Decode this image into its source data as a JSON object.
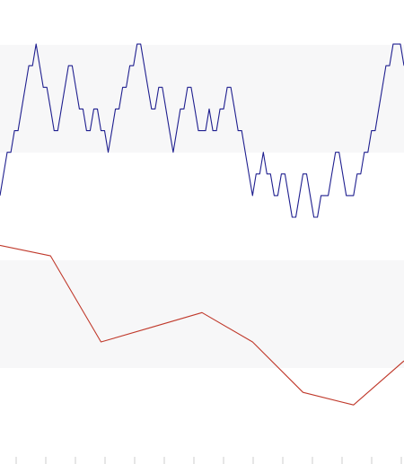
{
  "chart_data": [
    {
      "type": "line",
      "title": "",
      "xlabel": "",
      "ylabel": "",
      "ylim": [
        0,
        9
      ],
      "grid_bands": true,
      "legend": "none",
      "series": [
        {
          "color": "#1f1f8f",
          "values": [
            1,
            2,
            3,
            3,
            4,
            4,
            5,
            6,
            7,
            7,
            8,
            7,
            6,
            6,
            5,
            4,
            4,
            5,
            6,
            7,
            7,
            6,
            5,
            5,
            4,
            4,
            5,
            5,
            4,
            4,
            3,
            4,
            5,
            5,
            6,
            6,
            7,
            7,
            8,
            8,
            7,
            6,
            5,
            5,
            6,
            6,
            5,
            4,
            3,
            4,
            5,
            5,
            6,
            6,
            5,
            4,
            4,
            4,
            5,
            4,
            4,
            5,
            5,
            6,
            6,
            5,
            4,
            4,
            3,
            2,
            1,
            2,
            2,
            3,
            2,
            2,
            1,
            1,
            2,
            2,
            1,
            0,
            0,
            1,
            2,
            2,
            1,
            0,
            0,
            1,
            1,
            1,
            2,
            3,
            3,
            2,
            1,
            1,
            1,
            2,
            2,
            3,
            3,
            4,
            4,
            5,
            6,
            7,
            7,
            8,
            8,
            8,
            7
          ]
        }
      ]
    },
    {
      "type": "line",
      "title": "",
      "xlabel": "",
      "ylabel": "",
      "ylim": [
        0,
        10
      ],
      "grid_bands": true,
      "legend": "none",
      "x_ticks": 16,
      "series": [
        {
          "color": "#c0392b",
          "values": [
            9.0,
            8.5,
            4.4,
            5.1,
            5.8,
            4.4,
            2.0,
            1.4,
            3.5
          ]
        }
      ]
    }
  ],
  "colors": {
    "background": "#ffffff",
    "band": "#f7f7f8",
    "axis_tick": "#cccccc"
  }
}
